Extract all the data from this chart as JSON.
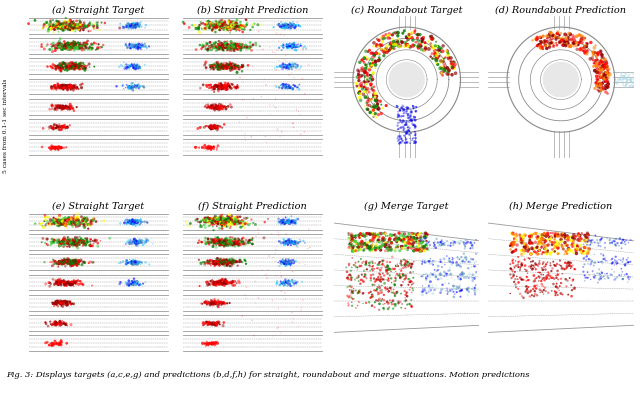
{
  "captions": [
    "(a) Straight Target",
    "(b) Straight Prediction",
    "(c) Roundabout Target",
    "(d) Roundabout Prediction",
    "(e) Straight Target",
    "(f) Straight Prediction",
    "(g) Merge Target",
    "(h) Merge Prediction"
  ],
  "background_color": "#ffffff",
  "fig_width": 6.4,
  "fig_height": 3.93,
  "caption_fontsize": 7.0,
  "figcaption_fontsize": 6.0
}
